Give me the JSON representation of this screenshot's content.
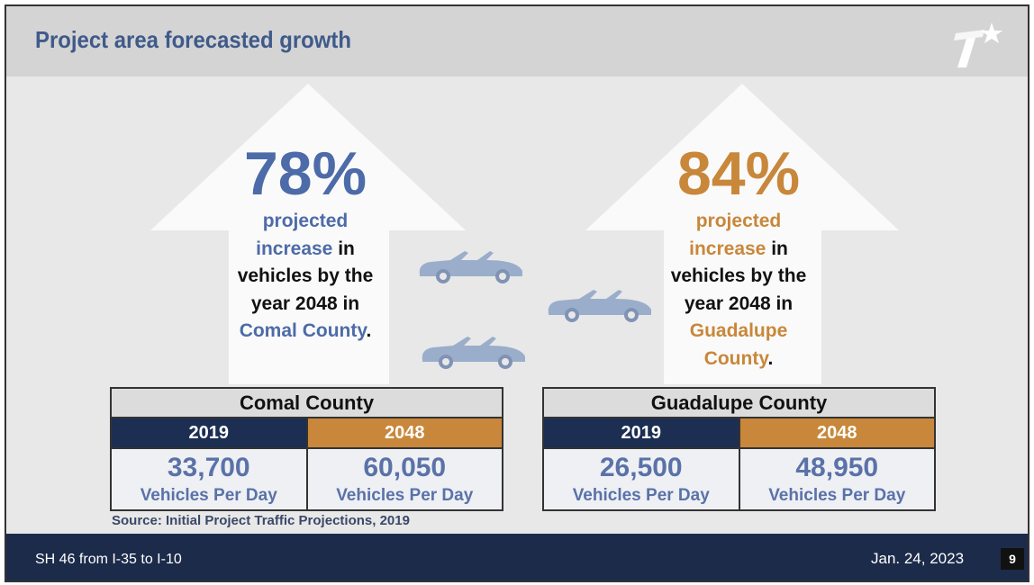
{
  "header": {
    "title": "Project area forecasted growth",
    "logo": "TxDOT star logo"
  },
  "colors": {
    "blue": "#4d6ba8",
    "orange": "#c8873a",
    "navy": "#1c2e52"
  },
  "left_arrow": {
    "percent": "78%",
    "line1": "projected",
    "line2a": "increase",
    "line2b": " in",
    "line3": "vehicles by the",
    "line4": "year 2048 in",
    "line5a": "Comal County",
    "line5b": "."
  },
  "right_arrow": {
    "percent": "84%",
    "line1": "projected",
    "line2a": "increase",
    "line2b": " in",
    "line3": "vehicles by the",
    "line4": "year 2048 in",
    "line5a": "Guadalupe",
    "line6a": "County",
    "line6b": "."
  },
  "tables": [
    {
      "title": "Comal County",
      "years": [
        "2019",
        "2048"
      ],
      "values": [
        "33,700",
        "60,050"
      ],
      "unit": "Vehicles Per Day"
    },
    {
      "title": "Guadalupe County",
      "years": [
        "2019",
        "2048"
      ],
      "values": [
        "26,500",
        "48,950"
      ],
      "unit": "Vehicles Per Day"
    }
  ],
  "source": "Source: Initial Project Traffic Projections, 2019",
  "footer": {
    "project": "SH 46 from I-35 to I-10",
    "date": "Jan. 24, 2023",
    "page": "9"
  }
}
